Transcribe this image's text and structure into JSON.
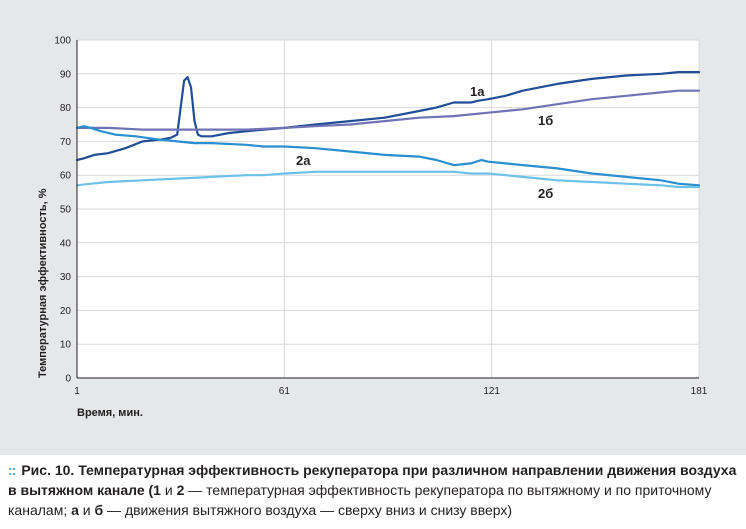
{
  "chart_data": {
    "type": "line",
    "xlabel": "Время, мин.",
    "ylabel": "Температурная эффективность, %",
    "xlim": [
      1,
      181
    ],
    "ylim": [
      0,
      100
    ],
    "x_ticks": [
      "1",
      "61",
      "121",
      "181"
    ],
    "y_ticks": [
      "0",
      "10",
      "20",
      "30",
      "40",
      "50",
      "60",
      "70",
      "80",
      "90",
      "100"
    ],
    "grid": true,
    "series": [
      {
        "name": "1а",
        "color": "#1f4e96",
        "x": [
          1,
          3,
          6,
          10,
          15,
          20,
          25,
          28,
          30,
          32,
          33,
          34,
          35,
          36,
          37,
          38,
          40,
          45,
          55,
          61,
          70,
          80,
          90,
          100,
          105,
          110,
          115,
          117,
          120,
          125,
          130,
          140,
          150,
          160,
          170,
          175,
          181
        ],
        "y": [
          64.5,
          65,
          66,
          66.5,
          68,
          70,
          70.5,
          71,
          72,
          88,
          89,
          86,
          76,
          72,
          71.5,
          71.5,
          71.5,
          72.5,
          73.5,
          74,
          75,
          76,
          77,
          79,
          80,
          81.5,
          81.5,
          82,
          82.5,
          83.5,
          85,
          87,
          88.5,
          89.5,
          90,
          90.5,
          90.5
        ]
      },
      {
        "name": "1б",
        "color": "#6f72b5",
        "x": [
          1,
          10,
          20,
          30,
          40,
          50,
          61,
          70,
          80,
          90,
          100,
          110,
          120,
          130,
          140,
          150,
          160,
          170,
          175,
          181
        ],
        "y": [
          74,
          74,
          73.5,
          73.5,
          73.5,
          73.5,
          74,
          74.5,
          75,
          76,
          77,
          77.5,
          78.5,
          79.5,
          81,
          82.5,
          83.5,
          84.5,
          85,
          85
        ]
      },
      {
        "name": "2а",
        "color": "#2a8fd0",
        "x": [
          1,
          3,
          5,
          8,
          12,
          18,
          25,
          30,
          35,
          40,
          50,
          55,
          61,
          70,
          80,
          90,
          100,
          105,
          110,
          115,
          118,
          120,
          125,
          130,
          140,
          150,
          160,
          165,
          170,
          175,
          181
        ],
        "y": [
          74,
          74.5,
          74,
          73,
          72,
          71.5,
          70.5,
          70,
          69.5,
          69.5,
          69,
          68.5,
          68.5,
          68,
          67,
          66,
          65.5,
          64.5,
          63,
          63.5,
          64.5,
          64,
          63.5,
          63,
          62,
          60.5,
          59.5,
          59,
          58.5,
          57.5,
          57
        ]
      },
      {
        "name": "2б",
        "color": "#6cc1e8",
        "x": [
          1,
          5,
          10,
          20,
          30,
          40,
          50,
          55,
          61,
          70,
          80,
          90,
          100,
          110,
          115,
          120,
          130,
          140,
          150,
          160,
          170,
          175,
          181
        ],
        "y": [
          57,
          57.5,
          58,
          58.5,
          59,
          59.5,
          60,
          60,
          60.5,
          61,
          61,
          61,
          61,
          61,
          60.5,
          60.5,
          59.5,
          58.5,
          58,
          57.5,
          57,
          56.5,
          56.5
        ]
      }
    ],
    "series_labels": [
      "1а",
      "1б",
      "2а",
      "2б"
    ]
  },
  "caption": {
    "dots": "::",
    "fig": "Рис. 10.",
    "title": " Температурная эффективность рекуператора при различном направлении движения воздуха в вытяжном канале (",
    "n1": "1",
    "and1": " и ",
    "n2": "2",
    "mid": " — температурная эффективность рекуператора по вытяжному и по приточному каналам; ",
    "la": "а",
    "and2": " и ",
    "lb": "б",
    "tail": " — движения вытяжного воздуха — сверху вниз и снизу вверх)"
  }
}
